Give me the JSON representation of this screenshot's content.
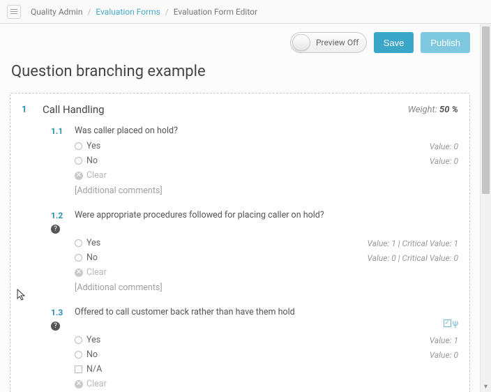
{
  "breadcrumb": {
    "root": "Quality Admin",
    "mid": "Evaluation Forms",
    "leaf": "Evaluation Form Editor"
  },
  "actions": {
    "preview_toggle": "Preview Off",
    "save": "Save",
    "publish": "Publish"
  },
  "page_title": "Question branching example",
  "section": {
    "number": "1",
    "title": "Call Handling",
    "weight_label": "Weight:",
    "weight_value": "50 %"
  },
  "questions": [
    {
      "num": "1.1",
      "text": "Was caller placed on hold?",
      "help": false,
      "answers": [
        {
          "kind": "radio",
          "label": "Yes",
          "value_text": "Value: 0"
        },
        {
          "kind": "radio",
          "label": "No",
          "value_text": "Value: 0"
        }
      ],
      "clear": "Clear",
      "comments": "[Additional comments]",
      "branch_flag": false
    },
    {
      "num": "1.2",
      "text": "Were appropriate procedures followed for placing caller on hold?",
      "help": true,
      "answers": [
        {
          "kind": "radio",
          "label": "Yes",
          "value_text": "Value: 1 | Critical Value: 1"
        },
        {
          "kind": "radio",
          "label": "No",
          "value_text": "Value: 0 | Critical Value: 0"
        }
      ],
      "clear": "Clear",
      "comments": "[Additional comments]",
      "branch_flag": false
    },
    {
      "num": "1.3",
      "text": "Offered to call customer back rather than have them hold",
      "help": true,
      "answers": [
        {
          "kind": "radio",
          "label": "Yes",
          "value_text": "Value: 1"
        },
        {
          "kind": "radio",
          "label": "No",
          "value_text": "Value: 0"
        },
        {
          "kind": "checkbox",
          "label": "N/A",
          "value_text": ""
        }
      ],
      "clear": "Clear",
      "comments": "",
      "branch_flag": true,
      "branch_symbol": "ψ"
    }
  ]
}
